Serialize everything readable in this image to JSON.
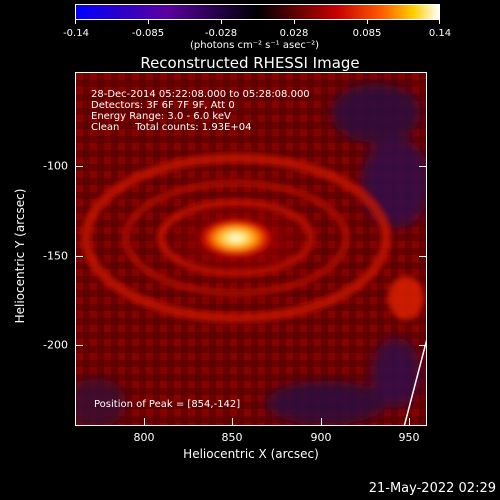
{
  "colorbar": {
    "ticks": [
      "-0.14",
      "-0.085",
      "-0.028",
      "0.028",
      "0.085",
      "0.14"
    ],
    "units": "(photons cm⁻² s⁻¹ asec⁻²)"
  },
  "title": "Reconstructed RHESSI Image",
  "annotations": {
    "time_range": "28-Dec-2014 05:22:08.000 to 05:28:08.000",
    "detectors": "Detectors: 3F 6F 7F 9F, Att 0",
    "energy": "Energy Range: 3.0 - 6.0 keV",
    "method": "Clean     Total counts: 1.93E+04",
    "peak": "Position of Peak = [854,-142]"
  },
  "axes": {
    "xlabel": "Heliocentric X (arcsec)",
    "ylabel": "Heliocentric Y (arcsec)",
    "xticks": [
      "800",
      "850",
      "900",
      "950"
    ],
    "yticks": [
      "-100",
      "-150",
      "-200"
    ]
  },
  "footer": "21-May-2022 02:29",
  "colors": {
    "background": "#000000",
    "source_core": "#ffffff",
    "source_hot": "#ffd000",
    "background_red": "#a00000"
  }
}
